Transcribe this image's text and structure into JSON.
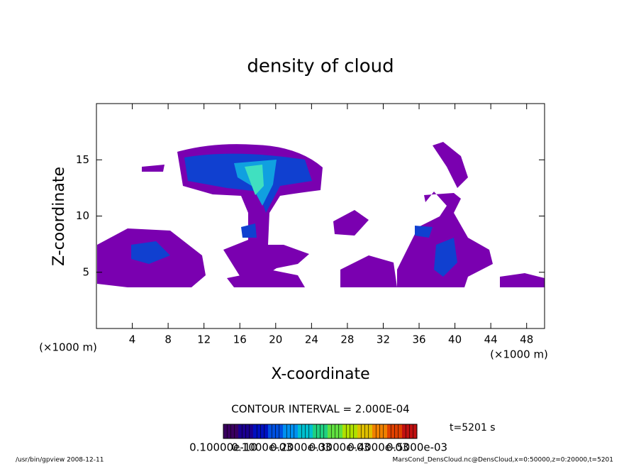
{
  "chart_data": {
    "type": "contour",
    "title": "density of cloud",
    "x_label": "X-coordinate",
    "y_label": "Z-coordinate",
    "x_unit": "(×1000 m)",
    "y_unit": "(×1000 m)",
    "xlim": [
      0,
      50
    ],
    "ylim": [
      0,
      20
    ],
    "xticks": [
      4,
      8,
      12,
      16,
      20,
      24,
      28,
      32,
      36,
      40,
      44,
      48
    ],
    "yticks": [
      5,
      10,
      15
    ],
    "contour_interval": "CONTOUR INTERVAL = 2.000E-04",
    "time_label": "t=5201 s",
    "colorbar_labels": [
      "0.10000e-10",
      "0.1000e-03",
      "0.2000e-03",
      "0.3000e-03",
      "0.4000e-03",
      "0.5000e-03"
    ],
    "colorbar_colors": [
      "#3a0060",
      "#1a0090",
      "#0010c0",
      "#0050e0",
      "#0090f0",
      "#00c0d0",
      "#20d080",
      "#60e040",
      "#b0e000",
      "#e0c000",
      "#f08000",
      "#e04000",
      "#c01010"
    ],
    "footer_left": "/usr/bin/gpview  2008-12-11",
    "footer_right": "MarsCond_DensCloud.nc@DensCloud,x=0:50000,z=0:20000,t=5201"
  }
}
